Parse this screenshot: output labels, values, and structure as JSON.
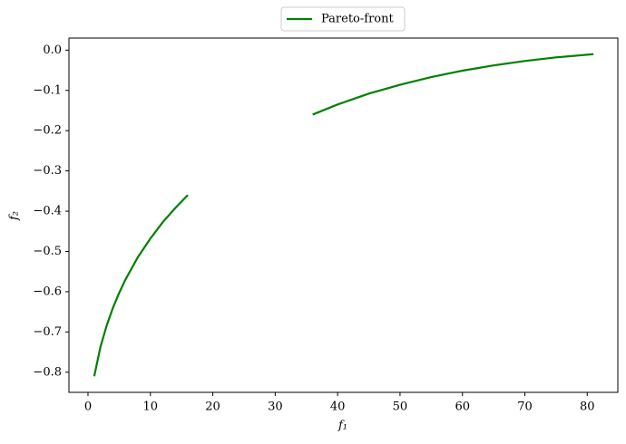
{
  "chart_data": {
    "type": "line",
    "x_label": "f₁",
    "y_label": "f₂",
    "x": [
      1,
      2,
      3,
      4,
      5,
      6,
      8,
      10,
      12,
      14,
      16,
      26,
      36,
      40,
      45,
      50,
      55,
      60,
      65,
      70,
      75,
      81
    ],
    "series": [
      {
        "name": "Pareto-front",
        "color": "#008000",
        "values": [
          -0.81,
          -0.737,
          -0.684,
          -0.64,
          -0.603,
          -0.57,
          -0.514,
          -0.468,
          -0.427,
          -0.392,
          -0.36,
          null,
          -0.16,
          -0.135,
          -0.108,
          -0.086,
          -0.067,
          -0.051,
          -0.038,
          -0.027,
          -0.018,
          -0.01
        ]
      }
    ],
    "xlim": [
      -3.05,
      84.9
    ],
    "xticks": [
      0,
      10,
      20,
      30,
      40,
      50,
      60,
      70,
      80
    ],
    "ylim": [
      -0.85,
      0.03
    ],
    "yticks": [
      {
        "value": -0.8,
        "label": "−0.8"
      },
      {
        "value": -0.7,
        "label": "−0.7"
      },
      {
        "value": -0.6,
        "label": "−0.6"
      },
      {
        "value": -0.5,
        "label": "−0.5"
      },
      {
        "value": -0.4,
        "label": "−0.4"
      },
      {
        "value": -0.3,
        "label": "−0.3"
      },
      {
        "value": -0.2,
        "label": "−0.2"
      },
      {
        "value": -0.1,
        "label": "−0.1"
      },
      {
        "value": 0,
        "label": "0.0"
      }
    ],
    "grid": false,
    "legend": "top"
  }
}
